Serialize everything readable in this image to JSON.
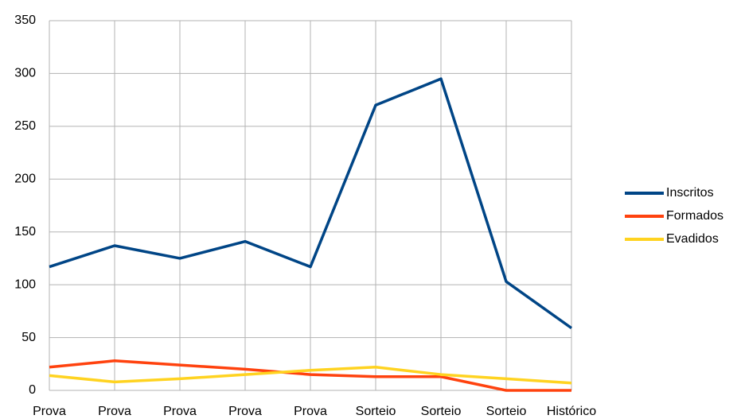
{
  "chart_data": {
    "type": "line",
    "categories": [
      "Prova",
      "Prova",
      "Prova",
      "Prova",
      "Prova",
      "Sorteio",
      "Sorteio",
      "Sorteio",
      "Histórico"
    ],
    "series": [
      {
        "name": "Inscritos",
        "color": "#004586",
        "values": [
          117,
          137,
          125,
          141,
          117,
          270,
          295,
          103,
          59
        ]
      },
      {
        "name": "Formados",
        "color": "#ff420e",
        "values": [
          22,
          28,
          24,
          20,
          15,
          13,
          13,
          0,
          0
        ]
      },
      {
        "name": "Evadidos",
        "color": "#ffd320",
        "values": [
          14,
          8,
          11,
          15,
          19,
          22,
          15,
          11,
          7
        ]
      }
    ],
    "ylim": [
      0,
      350
    ],
    "yticks": [
      0,
      50,
      100,
      150,
      200,
      250,
      300,
      350
    ],
    "grid": true,
    "legend": "right"
  }
}
